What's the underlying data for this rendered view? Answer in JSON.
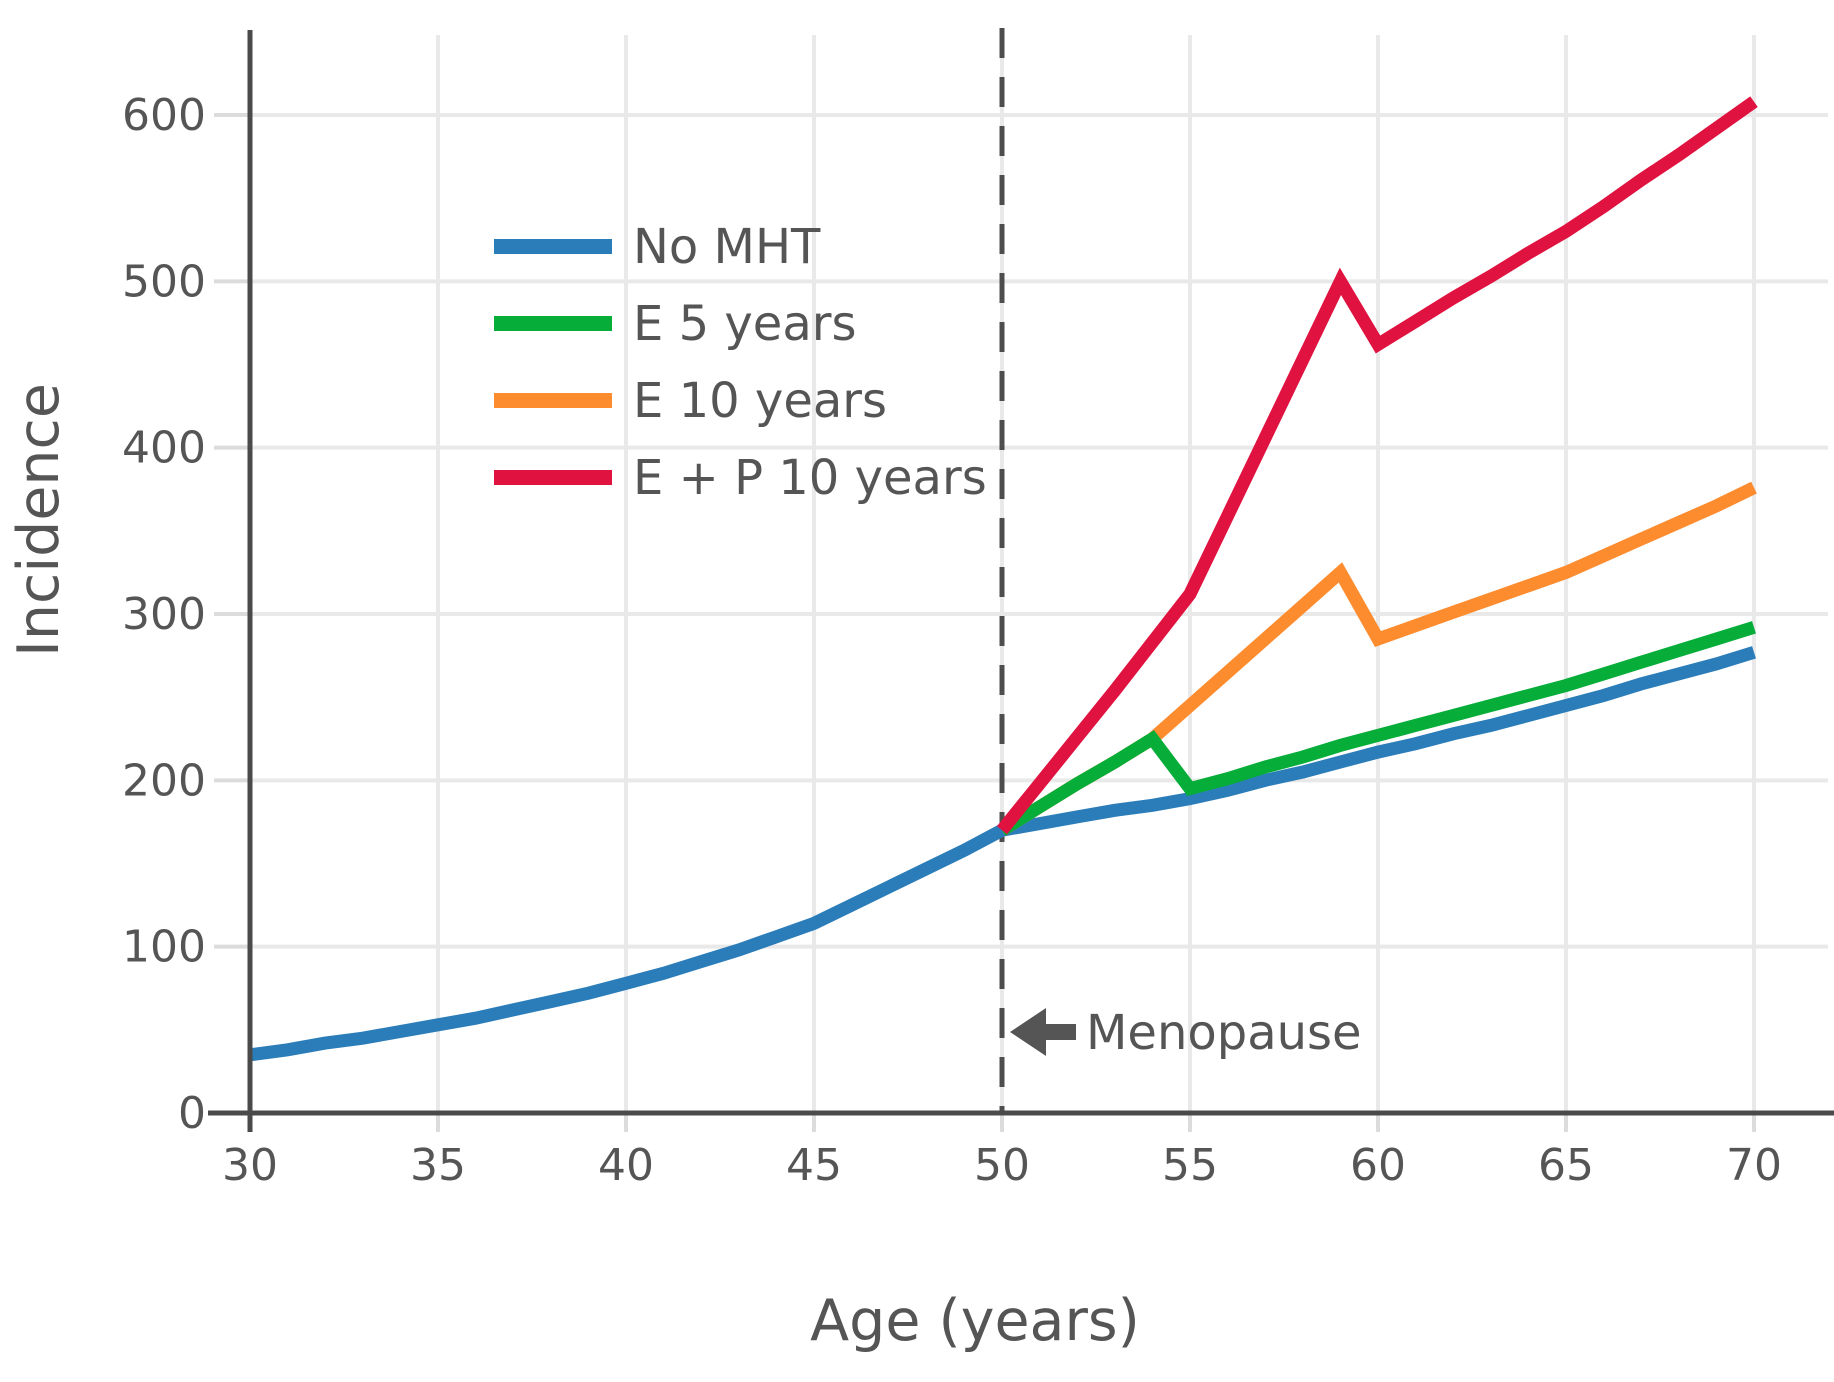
{
  "figure": {
    "background": "#ffffff",
    "text_color": "#555555",
    "spine_color": "#4a4a4a",
    "grid_color": "#e9e9e9",
    "tick_color": "#dcdcdc",
    "dashed_line_color": "#4d4d4d",
    "annotation_color": "#555555"
  },
  "chart_data": {
    "type": "line",
    "title": "",
    "xlabel": "Age (years)",
    "ylabel": "Incidence",
    "xlim": [
      30,
      72
    ],
    "ylim": [
      0,
      648
    ],
    "xticks": [
      30,
      35,
      40,
      45,
      50,
      55,
      60,
      65,
      70
    ],
    "yticks": [
      0,
      100,
      200,
      300,
      400,
      500,
      600
    ],
    "grid": true,
    "legend_position": "upper-left-inside",
    "vline": {
      "x": 50,
      "style": "dashed"
    },
    "annotation": {
      "text": "Menopause",
      "arrow": "left",
      "x": 50.2,
      "y": 48
    },
    "series": [
      {
        "name": "No MHT",
        "color": "#2A7DB9",
        "points": [
          [
            30,
            35
          ],
          [
            31,
            38
          ],
          [
            32,
            42
          ],
          [
            33,
            45
          ],
          [
            34,
            49
          ],
          [
            35,
            53
          ],
          [
            36,
            57
          ],
          [
            37,
            62
          ],
          [
            38,
            67
          ],
          [
            39,
            72
          ],
          [
            40,
            78
          ],
          [
            41,
            84
          ],
          [
            42,
            91
          ],
          [
            43,
            98
          ],
          [
            44,
            106
          ],
          [
            45,
            114
          ],
          [
            46,
            125
          ],
          [
            47,
            136
          ],
          [
            48,
            147
          ],
          [
            49,
            158
          ],
          [
            50,
            170
          ],
          [
            51,
            174
          ],
          [
            52,
            178
          ],
          [
            53,
            182
          ],
          [
            54,
            185
          ],
          [
            55,
            189
          ],
          [
            56,
            194
          ],
          [
            57,
            200
          ],
          [
            58,
            205
          ],
          [
            59,
            211
          ],
          [
            60,
            217
          ],
          [
            61,
            222
          ],
          [
            62,
            228
          ],
          [
            63,
            233
          ],
          [
            64,
            239
          ],
          [
            65,
            245
          ],
          [
            66,
            251
          ],
          [
            67,
            258
          ],
          [
            68,
            264
          ],
          [
            69,
            270
          ],
          [
            70,
            277
          ]
        ]
      },
      {
        "name": "E 5 years",
        "color": "#07AD39",
        "points": [
          [
            50,
            170
          ],
          [
            51,
            184
          ],
          [
            52,
            198
          ],
          [
            53,
            211
          ],
          [
            54,
            225
          ],
          [
            55,
            195
          ],
          [
            56,
            201
          ],
          [
            57,
            208
          ],
          [
            58,
            214
          ],
          [
            59,
            221
          ],
          [
            60,
            227
          ],
          [
            61,
            233
          ],
          [
            62,
            239
          ],
          [
            63,
            245
          ],
          [
            64,
            251
          ],
          [
            65,
            257
          ],
          [
            66,
            264
          ],
          [
            67,
            271
          ],
          [
            68,
            278
          ],
          [
            69,
            285
          ],
          [
            70,
            292
          ]
        ]
      },
      {
        "name": "E 10 years",
        "color": "#FD8C2F",
        "points": [
          [
            50,
            170
          ],
          [
            51,
            184
          ],
          [
            52,
            198
          ],
          [
            53,
            211
          ],
          [
            54,
            225
          ],
          [
            55,
            245
          ],
          [
            56,
            265
          ],
          [
            57,
            285
          ],
          [
            58,
            305
          ],
          [
            59,
            325
          ],
          [
            60,
            285
          ],
          [
            61,
            293
          ],
          [
            62,
            301
          ],
          [
            63,
            309
          ],
          [
            64,
            317
          ],
          [
            65,
            325
          ],
          [
            66,
            335
          ],
          [
            67,
            345
          ],
          [
            68,
            355
          ],
          [
            69,
            365
          ],
          [
            70,
            376
          ]
        ]
      },
      {
        "name": "E + P 10 years",
        "color": "#E01240",
        "points": [
          [
            50,
            170
          ],
          [
            51,
            198
          ],
          [
            52,
            226
          ],
          [
            53,
            254
          ],
          [
            54,
            283
          ],
          [
            55,
            312
          ],
          [
            56,
            359
          ],
          [
            57,
            406
          ],
          [
            58,
            453
          ],
          [
            59,
            500
          ],
          [
            60,
            462
          ],
          [
            61,
            476
          ],
          [
            62,
            490
          ],
          [
            63,
            503
          ],
          [
            64,
            517
          ],
          [
            65,
            530
          ],
          [
            66,
            545
          ],
          [
            67,
            561
          ],
          [
            68,
            576
          ],
          [
            69,
            592
          ],
          [
            70,
            608
          ]
        ]
      }
    ]
  }
}
